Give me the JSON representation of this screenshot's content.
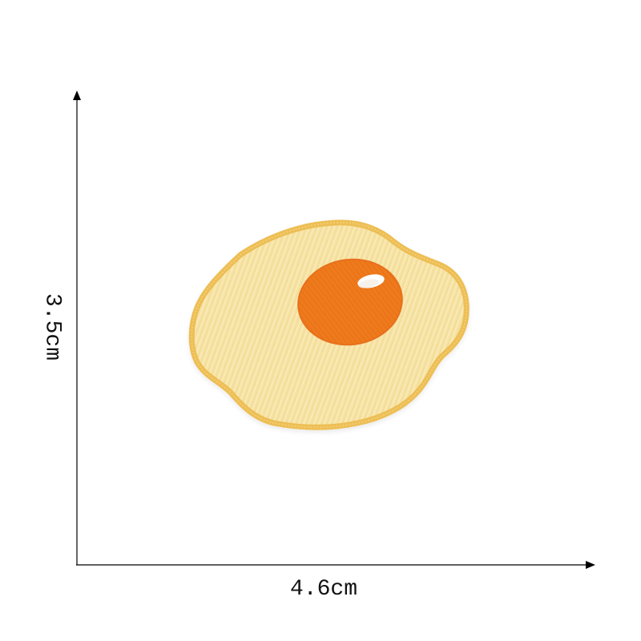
{
  "dimensions": {
    "height_label": "3.5cm",
    "width_label": "4.6cm"
  },
  "patch": {
    "subject": "fried-egg",
    "colors": {
      "white_fill": "#F6E3A4",
      "border": "#EDBE55",
      "yolk": "#EF7A1E",
      "highlight": "#FFFFFF"
    }
  },
  "colors": {
    "background": "#FFFFFF",
    "axis": "#000000",
    "text": "#111111"
  }
}
